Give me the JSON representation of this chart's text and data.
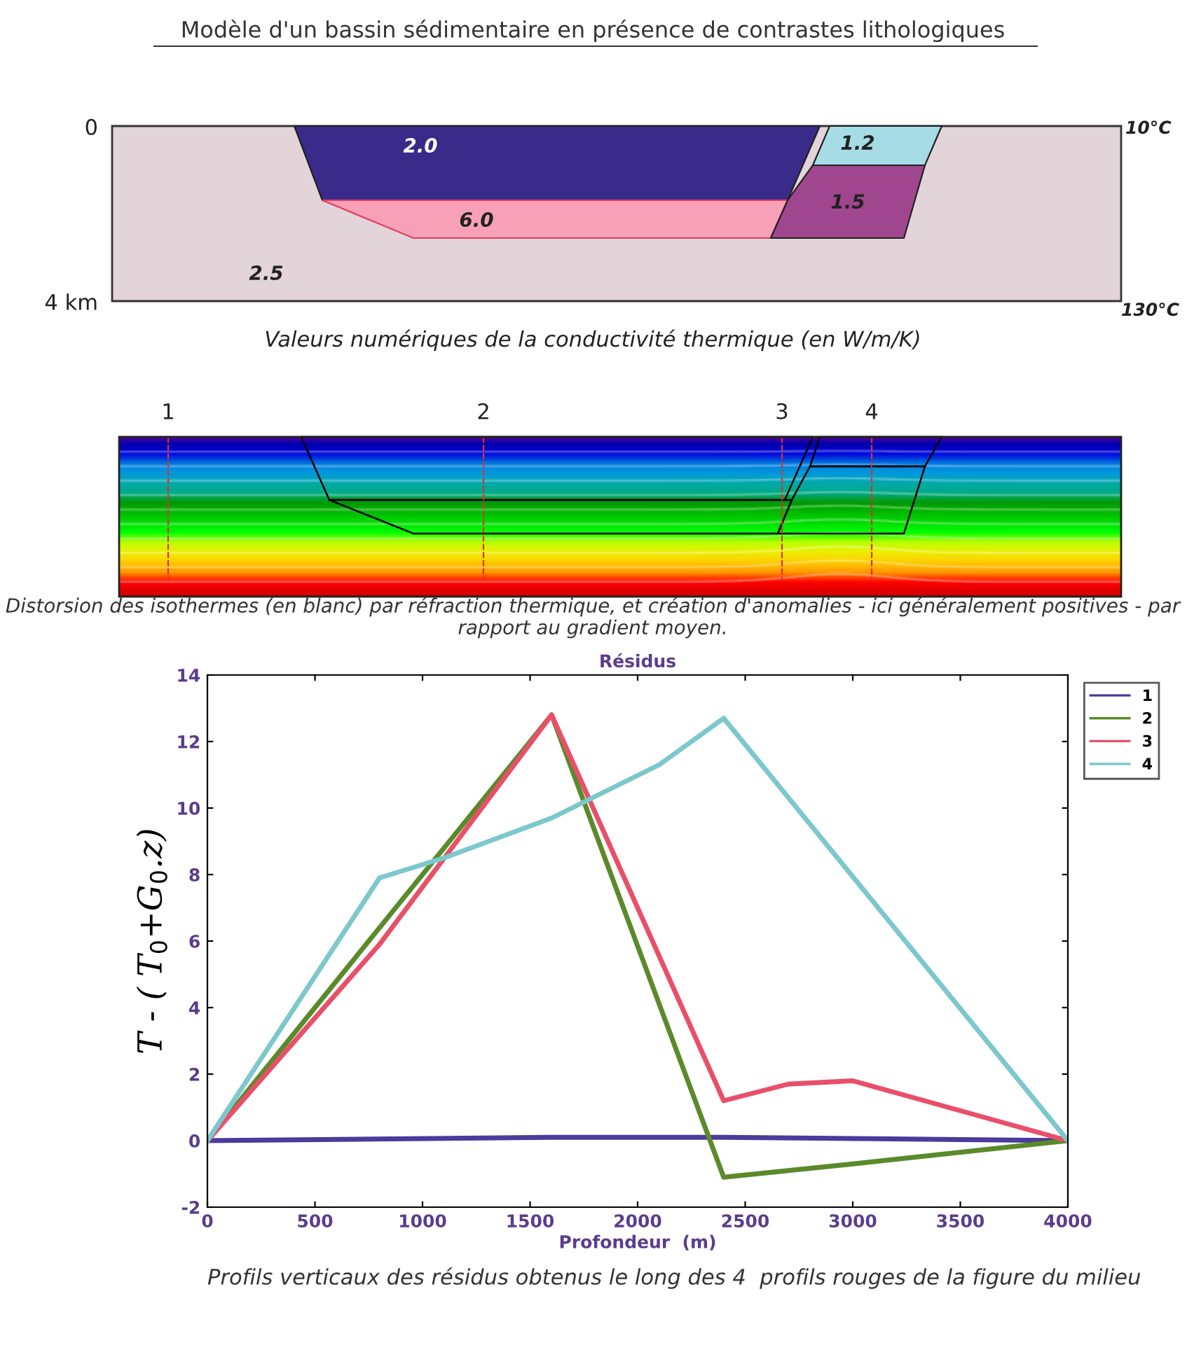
{
  "chart_data": [
    {
      "type": "other",
      "title": "Modèle d'un bassin sédimentaire en présence de contrastes lithologiques",
      "annotations": [
        "0",
        "4 km",
        "10°C",
        "130°C",
        "2.0",
        "1.2",
        "1.5",
        "6.0",
        "2.5",
        "Valeurs numériques de la conductivité thermique (en W/m/K)",
        "1",
        "2",
        "3",
        "4",
        "Distorsion des isothermes (en blanc) par réfraction thermique, et création d'anomalies - ici généralement positives - par rapport au gradient moyen."
      ]
    },
    {
      "type": "line",
      "title": "Résidus",
      "xlabel": "Profondeur  (m)",
      "ylabel": "T - ( T$_{0}$+G$_{0}$.z)",
      "xlim": [
        0,
        4000
      ],
      "xticks": [
        0,
        500,
        1000,
        1500,
        2000,
        2500,
        3000,
        3500,
        4000
      ],
      "ylim": [
        -2,
        14
      ],
      "yticks": [
        -2,
        0,
        2,
        4,
        6,
        8,
        10,
        12,
        14
      ],
      "grid": false,
      "legend": "top right",
      "marker": "none",
      "line_style": "solid",
      "series": [
        {
          "name": "1",
          "color": "#4b3b9a",
          "x": [
            0,
            1600,
            2400,
            4000
          ],
          "values": [
            0,
            0.1,
            0.1,
            0
          ]
        },
        {
          "name": "2",
          "color": "#5a8a2a",
          "x": [
            0,
            1600,
            2400,
            3000,
            4000
          ],
          "values": [
            0,
            12.8,
            -1.1,
            -0.7,
            0
          ]
        },
        {
          "name": "3",
          "color": "#e8506a",
          "x": [
            0,
            800,
            1600,
            2400,
            2700,
            3000,
            4000
          ],
          "values": [
            0,
            5.9,
            12.8,
            1.2,
            1.7,
            1.8,
            0
          ]
        },
        {
          "name": "4",
          "color": "#7cc8cc",
          "x": [
            0,
            800,
            1100,
            1600,
            2100,
            2400,
            4000
          ],
          "values": [
            0,
            7.9,
            8.5,
            9.7,
            11.3,
            12.7,
            0
          ]
        }
      ],
      "annotations": [
        "Profils verticaux des résidus obtenus le long des 4  profils rouges de la figure du milieu"
      ]
    }
  ]
}
